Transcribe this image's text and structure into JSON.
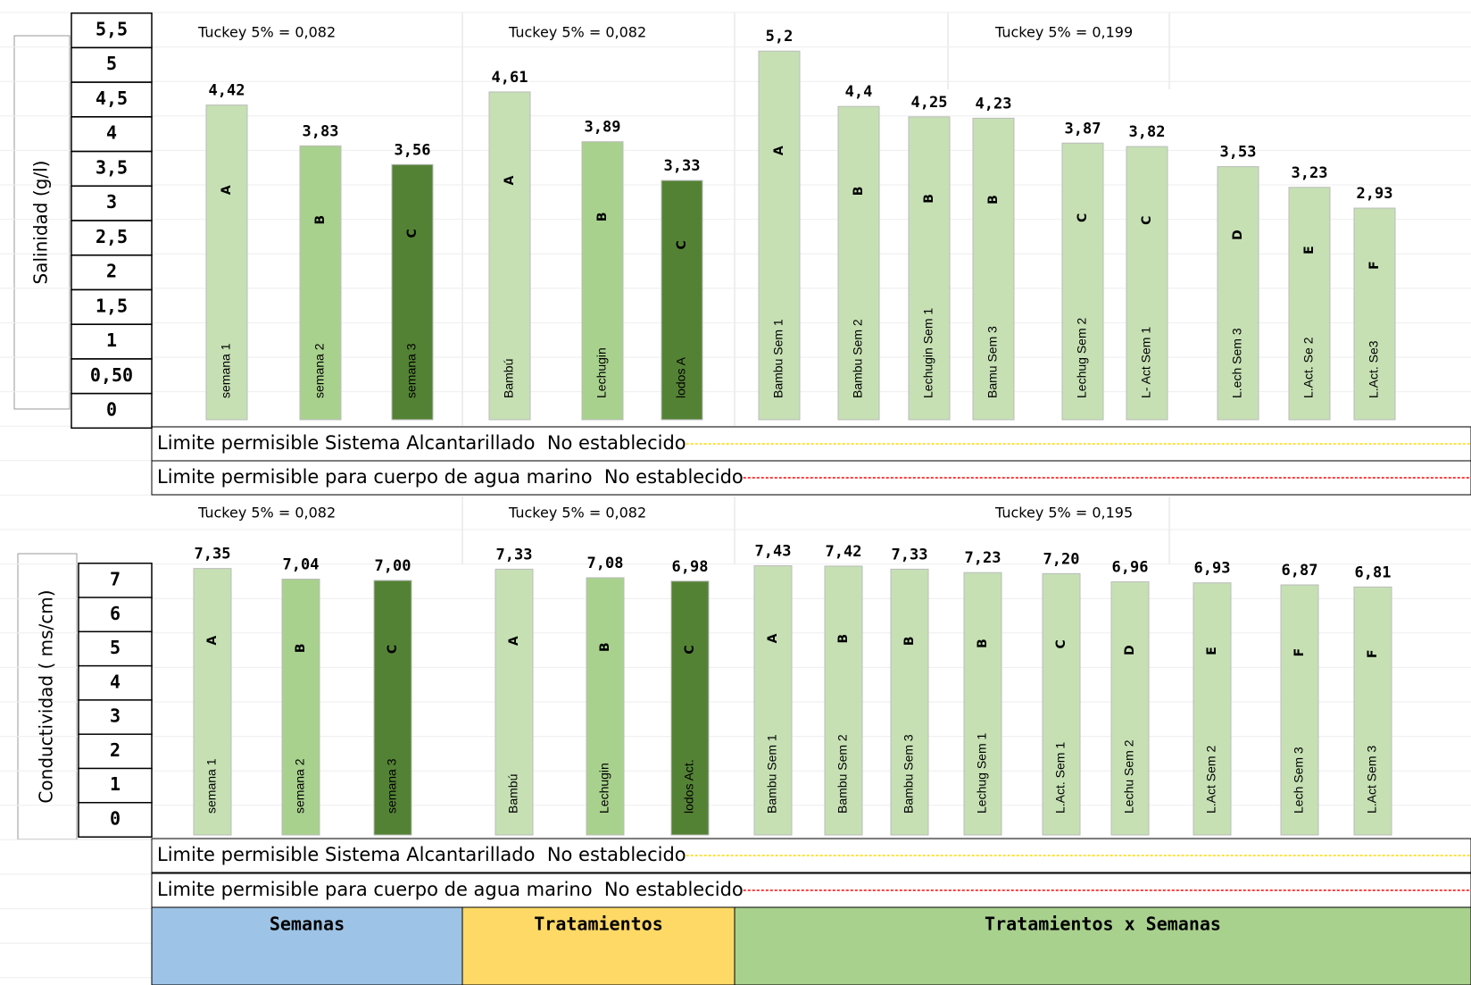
{
  "chart_data": [
    {
      "type": "bar",
      "y_label": "Salinidad (g/l)",
      "ylim": [
        0,
        5.5
      ],
      "yticks": [
        {
          "value": 5.5,
          "label": "5,5"
        },
        5,
        {
          "value": 4.5,
          "label": "4,5"
        },
        4,
        {
          "value": 3.5,
          "label": "3,5"
        },
        3,
        {
          "value": 2.5,
          "label": "2,5"
        },
        2,
        {
          "value": 1.5,
          "label": "1,5"
        },
        1,
        {
          "value": 0.5,
          "label": "0,50"
        },
        0
      ],
      "categories": [
        "semana 1",
        "semana 2",
        "semana 3",
        "Bambú",
        "Lechugin",
        "lodos A",
        "Bambu  Sem 1",
        "Bambu  Sem 2",
        "Lechugin Sem 1",
        "Bamu  Sem 3",
        "Lechug  Sem 2",
        "L- Act  Sem 1",
        "L.ech Sem 3",
        "L.Act.  Se 2",
        "L.Act.  Se3"
      ],
      "values": [
        4.42,
        3.83,
        3.56,
        4.61,
        3.89,
        3.33,
        5.2,
        4.4,
        4.25,
        4.23,
        3.87,
        3.82,
        3.53,
        3.23,
        2.93
      ],
      "value_labels": [
        "4,42",
        "3,83",
        "3,56",
        "4,61",
        "3,89",
        "3,33",
        "5,2",
        "4,4",
        "4,25",
        "4,23",
        "3,87",
        "3,82",
        "3,53",
        "3,23",
        "2,93"
      ],
      "letters": [
        "A",
        "B",
        "C",
        "A",
        "B",
        "C",
        "A",
        "B",
        "B",
        "B",
        "C",
        "C",
        "D",
        "E",
        "F"
      ],
      "colors": [
        "#c6e0b4",
        "#a9d18e",
        "#548235",
        "#c6e0b4",
        "#a9d18e",
        "#548235",
        "#c6e0b4",
        "#c6e0b4",
        "#c6e0b4",
        "#c6e0b4",
        "#c6e0b4",
        "#c6e0b4",
        "#c6e0b4",
        "#c6e0b4",
        "#c6e0b4"
      ],
      "tukey": [
        "Tuckey 5% = 0,082",
        "Tuckey 5% = 0,082",
        "Tuckey 5% = 0,199"
      ],
      "limits": [
        {
          "text": "Limite permisible Sistema Alcantarillado  No establecido",
          "color": "#ffd700"
        },
        {
          "text": "Limite permisible para cuerpo de agua marino  No establecido",
          "color": "#ff0000"
        }
      ]
    },
    {
      "type": "bar",
      "y_label": "Conductividad ( ms/cm)",
      "ylim": [
        0,
        7
      ],
      "yticks": [
        7,
        6,
        5,
        4,
        3,
        2,
        1,
        0
      ],
      "categories": [
        "semana 1",
        "semana 2",
        "semana 3",
        "Bambú",
        "Lechugin",
        "lodos Act.",
        "Bambu  Sem 1",
        "Bambu  Sem 2",
        "Bambu  Sem 3",
        "Lechug  Sem 1",
        "L.Act.  Sem 1",
        "Lechu  Sem 2",
        "L.Act  Sem 2",
        "Lech  Sem 3",
        "L.Act  Sem 3"
      ],
      "values": [
        7.35,
        7.04,
        7.0,
        7.33,
        7.08,
        6.98,
        7.43,
        7.42,
        7.33,
        7.23,
        7.2,
        6.96,
        6.93,
        6.87,
        6.81
      ],
      "value_labels": [
        "7,35",
        "7,04",
        "7,00",
        "7,33",
        "7,08",
        "6,98",
        "7,43",
        "7,42",
        "7,33",
        "7,23",
        "7,20",
        "6,96",
        "6,93",
        "6,87",
        "6,81"
      ],
      "letters": [
        "A",
        "B",
        "C",
        "A",
        "B",
        "C",
        "A",
        "B",
        "B",
        "B",
        "C",
        "D",
        "E",
        "F",
        "F"
      ],
      "colors": [
        "#c6e0b4",
        "#a9d18e",
        "#548235",
        "#c6e0b4",
        "#a9d18e",
        "#548235",
        "#c6e0b4",
        "#c6e0b4",
        "#c6e0b4",
        "#c6e0b4",
        "#c6e0b4",
        "#c6e0b4",
        "#c6e0b4",
        "#c6e0b4",
        "#c6e0b4"
      ],
      "tukey": [
        "Tuckey 5% = 0,082",
        "Tuckey 5% = 0,082",
        "Tuckey 5% = 0,195"
      ],
      "limits": [
        {
          "text": "Limite permisible Sistema Alcantarillado  No establecido",
          "color": "#ffd700"
        },
        {
          "text": "Limite permisible para cuerpo de agua marino  No establecido",
          "color": "#ff0000"
        }
      ]
    }
  ],
  "footer": {
    "groups": [
      {
        "label": "Semanas",
        "color": "#9dc3e6"
      },
      {
        "label": "Tratamientos",
        "color": "#ffd966"
      },
      {
        "label": "Tratamientos x Semanas",
        "color": "#a9d18e"
      }
    ]
  }
}
